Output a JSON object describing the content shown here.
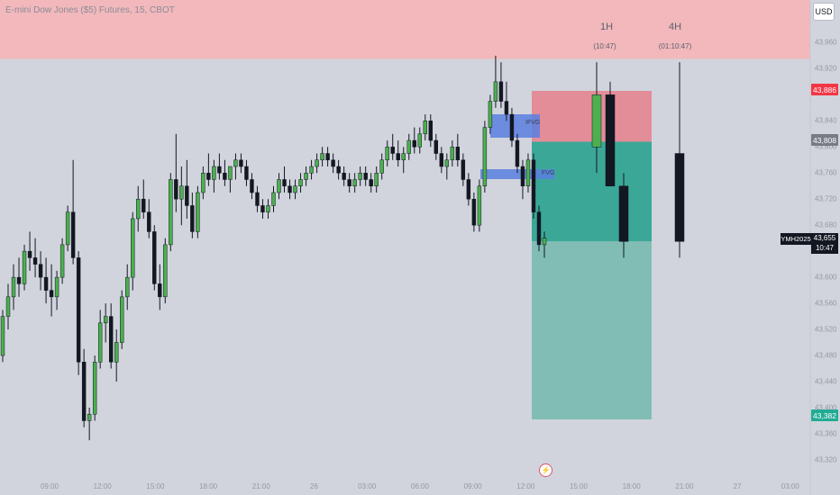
{
  "header": {
    "title": "E-mini Dow Jones ($5) Futures, 15, CBOT",
    "currency_button": "USD"
  },
  "timeframes": [
    {
      "label": "1H",
      "countdown": "(10:47)"
    },
    {
      "label": "4H",
      "countdown": "(01:10:47)"
    }
  ],
  "price_labels": [
    {
      "value": "43,886",
      "color": "#f23645"
    },
    {
      "value": "43,808",
      "color": "#787b86"
    },
    {
      "value": "43,382",
      "color": "#22ab94"
    }
  ],
  "last_price": {
    "symbol": "YMH2025",
    "value": "43,655",
    "countdown": "10:47"
  },
  "zone_tags": [
    "IFVG",
    "FVG"
  ],
  "colors": {
    "bull": "#4caf50",
    "bear": "#131722",
    "premium_zone": "#f2b8bc",
    "stop_zone": "#e38d99",
    "target_zone": "#3ba897",
    "target_zone_light": "#81bdb4",
    "fvg": "#5b7fe0"
  },
  "chart_data": {
    "type": "candlestick",
    "title": "E-mini Dow Jones ($5) Futures, 15, CBOT",
    "ylim": [
      43320,
      43990
    ],
    "y_ticks": [
      "43,960",
      "43,920",
      "43,840",
      "43,800",
      "43,760",
      "43,720",
      "43,680",
      "43,600",
      "43,560",
      "43,520",
      "43,480",
      "43,440",
      "43,400",
      "43,360",
      "43,320"
    ],
    "x_ticks": [
      "09:00",
      "12:00",
      "15:00",
      "18:00",
      "21:00",
      "26",
      "03:00",
      "06:00",
      "09:00",
      "12:00",
      "15:00",
      "18:00",
      "21:00",
      "27",
      "03:00"
    ],
    "candles": [
      [
        43480,
        43550,
        43470,
        43540
      ],
      [
        43540,
        43590,
        43520,
        43570
      ],
      [
        43570,
        43620,
        43550,
        43600
      ],
      [
        43600,
        43630,
        43570,
        43590
      ],
      [
        43590,
        43650,
        43580,
        43640
      ],
      [
        43640,
        43670,
        43610,
        43630
      ],
      [
        43630,
        43660,
        43600,
        43620
      ],
      [
        43620,
        43640,
        43580,
        43600
      ],
      [
        43600,
        43630,
        43560,
        43580
      ],
      [
        43580,
        43620,
        43540,
        43570
      ],
      [
        43570,
        43610,
        43550,
        43600
      ],
      [
        43600,
        43660,
        43590,
        43650
      ],
      [
        43650,
        43710,
        43640,
        43700
      ],
      [
        43700,
        43780,
        43620,
        43630
      ],
      [
        43630,
        43640,
        43450,
        43470
      ],
      [
        43470,
        43490,
        43370,
        43380
      ],
      [
        43380,
        43400,
        43350,
        43390
      ],
      [
        43390,
        43480,
        43380,
        43470
      ],
      [
        43470,
        43550,
        43460,
        43530
      ],
      [
        43530,
        43560,
        43500,
        43540
      ],
      [
        43540,
        43560,
        43460,
        43470
      ],
      [
        43470,
        43520,
        43440,
        43500
      ],
      [
        43500,
        43580,
        43490,
        43570
      ],
      [
        43570,
        43620,
        43550,
        43600
      ],
      [
        43600,
        43700,
        43580,
        43690
      ],
      [
        43690,
        43740,
        43670,
        43720
      ],
      [
        43720,
        43750,
        43690,
        43700
      ],
      [
        43700,
        43720,
        43660,
        43670
      ],
      [
        43670,
        43680,
        43580,
        43590
      ],
      [
        43590,
        43620,
        43550,
        43570
      ],
      [
        43570,
        43660,
        43560,
        43650
      ],
      [
        43650,
        43760,
        43640,
        43750
      ],
      [
        43750,
        43820,
        43700,
        43720
      ],
      [
        43720,
        43770,
        43680,
        43740
      ],
      [
        43740,
        43780,
        43690,
        43710
      ],
      [
        43710,
        43730,
        43660,
        43670
      ],
      [
        43670,
        43740,
        43660,
        43730
      ],
      [
        43730,
        43770,
        43720,
        43760
      ],
      [
        43760,
        43790,
        43740,
        43750
      ],
      [
        43750,
        43780,
        43730,
        43770
      ],
      [
        43770,
        43790,
        43750,
        43760
      ],
      [
        43760,
        43780,
        43740,
        43750
      ],
      [
        43750,
        43770,
        43730,
        43770
      ],
      [
        43770,
        43790,
        43750,
        43780
      ],
      [
        43780,
        43790,
        43760,
        43770
      ],
      [
        43770,
        43780,
        43740,
        43750
      ],
      [
        43750,
        43760,
        43720,
        43730
      ],
      [
        43730,
        43740,
        43700,
        43710
      ],
      [
        43710,
        43720,
        43690,
        43700
      ],
      [
        43700,
        43720,
        43690,
        43710
      ],
      [
        43710,
        43740,
        43700,
        43730
      ],
      [
        43730,
        43760,
        43720,
        43750
      ],
      [
        43750,
        43770,
        43730,
        43740
      ],
      [
        43740,
        43750,
        43720,
        43730
      ],
      [
        43730,
        43750,
        43720,
        43740
      ],
      [
        43740,
        43760,
        43730,
        43750
      ],
      [
        43750,
        43770,
        43740,
        43760
      ],
      [
        43760,
        43780,
        43750,
        43770
      ],
      [
        43770,
        43790,
        43760,
        43780
      ],
      [
        43780,
        43800,
        43770,
        43790
      ],
      [
        43790,
        43800,
        43770,
        43780
      ],
      [
        43780,
        43790,
        43760,
        43770
      ],
      [
        43770,
        43780,
        43750,
        43760
      ],
      [
        43760,
        43770,
        43740,
        43750
      ],
      [
        43750,
        43760,
        43730,
        43740
      ],
      [
        43740,
        43760,
        43730,
        43750
      ],
      [
        43750,
        43770,
        43740,
        43760
      ],
      [
        43760,
        43770,
        43740,
        43750
      ],
      [
        43750,
        43760,
        43730,
        43740
      ],
      [
        43740,
        43770,
        43730,
        43760
      ],
      [
        43760,
        43790,
        43750,
        43780
      ],
      [
        43780,
        43810,
        43770,
        43800
      ],
      [
        43800,
        43820,
        43780,
        43790
      ],
      [
        43790,
        43810,
        43770,
        43780
      ],
      [
        43780,
        43800,
        43760,
        43790
      ],
      [
        43790,
        43820,
        43780,
        43810
      ],
      [
        43810,
        43830,
        43790,
        43800
      ],
      [
        43800,
        43830,
        43790,
        43820
      ],
      [
        43820,
        43850,
        43810,
        43840
      ],
      [
        43840,
        43850,
        43800,
        43810
      ],
      [
        43810,
        43820,
        43780,
        43790
      ],
      [
        43790,
        43800,
        43760,
        43770
      ],
      [
        43770,
        43790,
        43750,
        43780
      ],
      [
        43780,
        43810,
        43770,
        43800
      ],
      [
        43800,
        43820,
        43770,
        43780
      ],
      [
        43780,
        43790,
        43740,
        43750
      ],
      [
        43750,
        43760,
        43710,
        43720
      ],
      [
        43720,
        43730,
        43670,
        43680
      ],
      [
        43680,
        43750,
        43670,
        43740
      ],
      [
        43740,
        43840,
        43730,
        43830
      ],
      [
        43830,
        43880,
        43820,
        43870
      ],
      [
        43870,
        43940,
        43860,
        43900
      ],
      [
        43900,
        43930,
        43860,
        43870
      ],
      [
        43870,
        43900,
        43840,
        43850
      ],
      [
        43850,
        43860,
        43800,
        43810
      ],
      [
        43810,
        43820,
        43760,
        43770
      ],
      [
        43770,
        43780,
        43720,
        43740
      ],
      [
        43740,
        43790,
        43730,
        43780
      ],
      [
        43780,
        43790,
        43690,
        43700
      ],
      [
        43700,
        43710,
        43640,
        43650
      ],
      [
        43650,
        43670,
        43630,
        43660
      ]
    ],
    "htf_candles": [
      {
        "label": "1H",
        "candles": [
          [
            43800,
            43930,
            43760,
            43880
          ],
          [
            43880,
            43900,
            43740,
            43740
          ],
          [
            43740,
            43760,
            43630,
            43655
          ]
        ]
      },
      {
        "label": "4H",
        "candles": [
          [
            43790,
            43930,
            43630,
            43655
          ]
        ]
      }
    ],
    "annotations": {
      "stop_zone": [
        43808,
        43886
      ],
      "target_zone": [
        43382,
        43808
      ],
      "entry": 43808,
      "last": 43655
    }
  }
}
